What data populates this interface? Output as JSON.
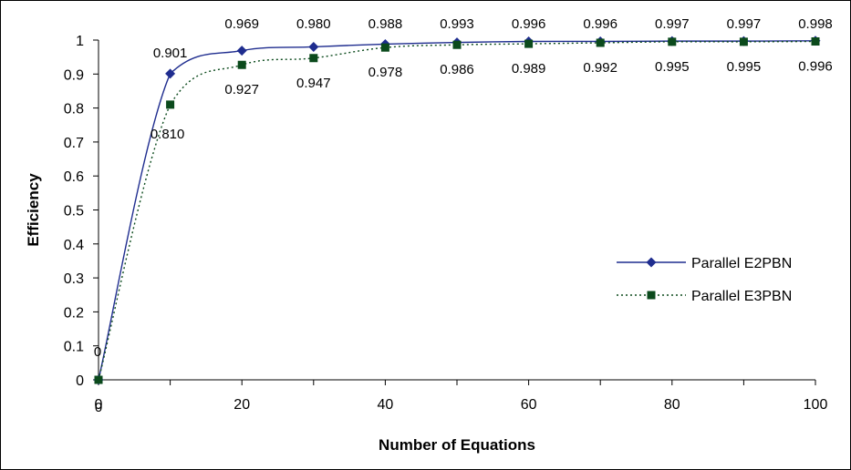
{
  "chart_data": {
    "type": "line",
    "title": "",
    "xlabel": "Number of Equations",
    "ylabel": "Efficiency",
    "xlim": [
      0,
      100
    ],
    "ylim": [
      0,
      1
    ],
    "x_ticks": [
      "0",
      "20",
      "40",
      "60",
      "80",
      "100"
    ],
    "y_ticks": [
      "0",
      "0.1",
      "0.2",
      "0.3",
      "0.4",
      "0.5",
      "0.6",
      "0.7",
      "0.8",
      "0.9",
      "1"
    ],
    "grid": false,
    "legend_position": "right",
    "x": [
      0,
      10,
      20,
      30,
      40,
      50,
      60,
      70,
      80,
      90,
      100
    ],
    "series": [
      {
        "name": "Parallel E2PBN",
        "color": "#1f2d8f",
        "line_style": "solid",
        "marker": "diamond",
        "values": [
          0,
          0.901,
          0.969,
          0.98,
          0.988,
          0.993,
          0.996,
          0.996,
          0.997,
          0.997,
          0.998
        ],
        "labels": [
          "0",
          "0.901",
          "0.969",
          "0.980",
          "0.988",
          "0.993",
          "0.996",
          "0.996",
          "0.997",
          "0.997",
          "0.998"
        ],
        "label_side": "above"
      },
      {
        "name": "Parallel E3PBN",
        "color": "#0b4a1c",
        "line_style": "dotted",
        "marker": "square",
        "values": [
          0,
          0.81,
          0.927,
          0.947,
          0.978,
          0.986,
          0.989,
          0.992,
          0.995,
          0.995,
          0.996
        ],
        "labels": [
          "0",
          "0.810",
          "0.927",
          "0.947",
          "0.978",
          "0.986",
          "0.989",
          "0.992",
          "0.995",
          "0.995",
          "0.996"
        ],
        "label_side": "below"
      }
    ]
  }
}
